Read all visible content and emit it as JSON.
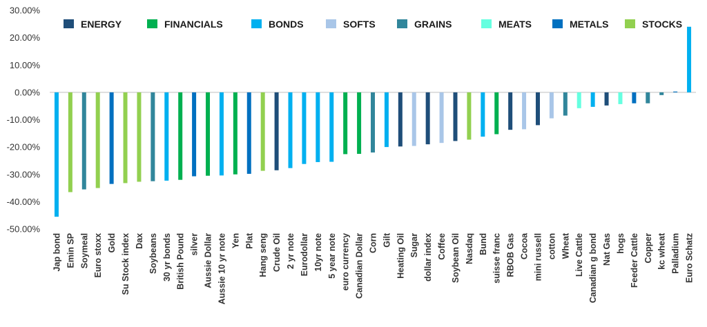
{
  "colors": {
    "ENERGY": "#1f4e79",
    "FINANCIALS": "#00b050",
    "BONDS": "#00b0f0",
    "SOFTS": "#a9c6e8",
    "GRAINS": "#31869b",
    "MEATS": "#66ffe0",
    "METALS": "#0070c0",
    "STOCKS": "#92d050"
  },
  "chart_data": {
    "type": "bar",
    "title": "",
    "xlabel": "",
    "ylabel": "",
    "ylim": [
      -50,
      30
    ],
    "yticks": [
      "30.00%",
      "20.00%",
      "10.00%",
      "0.00%",
      "-10.00%",
      "-20.00%",
      "-30.00%",
      "-40.00%",
      "-50.00%"
    ],
    "ytick_values": [
      30,
      20,
      10,
      0,
      -10,
      -20,
      -30,
      -40,
      -50
    ],
    "grid": false,
    "legend_position": "top",
    "legend": [
      "ENERGY",
      "FINANCIALS",
      "BONDS",
      "SOFTS",
      "GRAINS",
      "MEATS",
      "METALS",
      "STOCKS"
    ],
    "categories": [
      "Jap bond",
      "Emin SP",
      "Soymeal",
      "Euro stoxx",
      "Gold",
      "Su Stock index",
      "Dax",
      "Soybeans",
      "30 yr bonds",
      "British Pound",
      "silver",
      "Aussie Dollar",
      "Aussie 10 yr note",
      "Yen",
      "Plat",
      "Hang seng",
      "Crude Oil",
      "2 yr note",
      "Eurodollar",
      "10yr note",
      "5 year note",
      "euro currency",
      "Canadian Dollar",
      "Corn",
      "Gilt",
      "Heating Oil",
      "Sugar",
      "dollar index",
      "Coffee",
      "Soybean Oil",
      "Nasdaq",
      "Bund",
      "suisse franc",
      "RBOB Gas",
      "Cocoa",
      "mini russell",
      "cotton",
      "Wheat",
      "Live Cattle",
      "Canadian g bond",
      "Nat Gas",
      "hogs",
      "Feeder Cattle",
      "Copper",
      "kc wheat",
      "Palladium",
      "Euro Schatz"
    ],
    "groups": [
      "BONDS",
      "STOCKS",
      "GRAINS",
      "STOCKS",
      "METALS",
      "STOCKS",
      "STOCKS",
      "GRAINS",
      "BONDS",
      "FINANCIALS",
      "METALS",
      "FINANCIALS",
      "BONDS",
      "FINANCIALS",
      "METALS",
      "STOCKS",
      "ENERGY",
      "BONDS",
      "BONDS",
      "BONDS",
      "BONDS",
      "FINANCIALS",
      "FINANCIALS",
      "GRAINS",
      "BONDS",
      "ENERGY",
      "SOFTS",
      "ENERGY",
      "SOFTS",
      "ENERGY",
      "STOCKS",
      "BONDS",
      "FINANCIALS",
      "ENERGY",
      "SOFTS",
      "ENERGY",
      "SOFTS",
      "GRAINS",
      "MEATS",
      "BONDS",
      "ENERGY",
      "MEATS",
      "METALS",
      "GRAINS",
      "GRAINS",
      "METALS",
      "BONDS"
    ],
    "values": [
      -45.5,
      -36.5,
      -35.5,
      -35.0,
      -33.5,
      -33.2,
      -32.7,
      -32.5,
      -32.3,
      -32.0,
      -30.7,
      -30.5,
      -30.4,
      -30.0,
      -29.8,
      -28.7,
      -28.5,
      -27.7,
      -26.2,
      -25.5,
      -25.4,
      -22.6,
      -22.5,
      -22.0,
      -20.0,
      -19.8,
      -19.6,
      -19.0,
      -18.5,
      -17.8,
      -17.3,
      -16.2,
      -15.3,
      -13.7,
      -13.5,
      -12.0,
      -9.5,
      -8.5,
      -5.8,
      -5.3,
      -4.8,
      -4.3,
      -4.0,
      -4.0,
      -1.0,
      0.3,
      24.0
    ]
  }
}
